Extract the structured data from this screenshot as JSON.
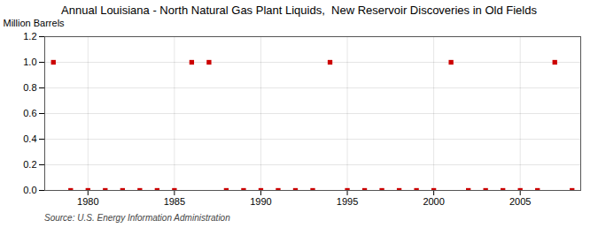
{
  "chart_data": {
    "type": "scatter",
    "title": "Annual Louisiana - North Natural Gas Plant Liquids,  New Reservoir Discoveries in Old Fields",
    "ylabel": "Million Barrels",
    "source": "Source: U.S. Energy Information Administration",
    "x": [
      1978,
      1979,
      1980,
      1981,
      1982,
      1983,
      1984,
      1985,
      1986,
      1987,
      1988,
      1989,
      1990,
      1991,
      1992,
      1993,
      1994,
      1995,
      1996,
      1997,
      1998,
      1999,
      2000,
      2001,
      2002,
      2003,
      2004,
      2005,
      2006,
      2007,
      2008
    ],
    "values": [
      1.0,
      0.0,
      0.0,
      0.0,
      0.0,
      0.0,
      0.0,
      0.0,
      1.0,
      1.0,
      0.0,
      0.0,
      0.0,
      0.0,
      0.0,
      0.0,
      1.0,
      0.0,
      0.0,
      0.0,
      0.0,
      0.0,
      0.0,
      1.0,
      0.0,
      0.0,
      0.0,
      0.0,
      0.0,
      1.0,
      0.0
    ],
    "color": "#cc0000",
    "marker": "square",
    "xlim": [
      1977.5,
      2008.5
    ],
    "xticks": [
      1980,
      1985,
      1990,
      1995,
      2000,
      2005
    ],
    "ylim": [
      0.0,
      1.2
    ],
    "yticks": [
      {
        "value": 0.0,
        "label": "0.0"
      },
      0.2,
      0.4,
      0.6,
      0.8,
      {
        "value": 1.0,
        "label": "1.0"
      },
      1.2
    ],
    "grid": true
  }
}
